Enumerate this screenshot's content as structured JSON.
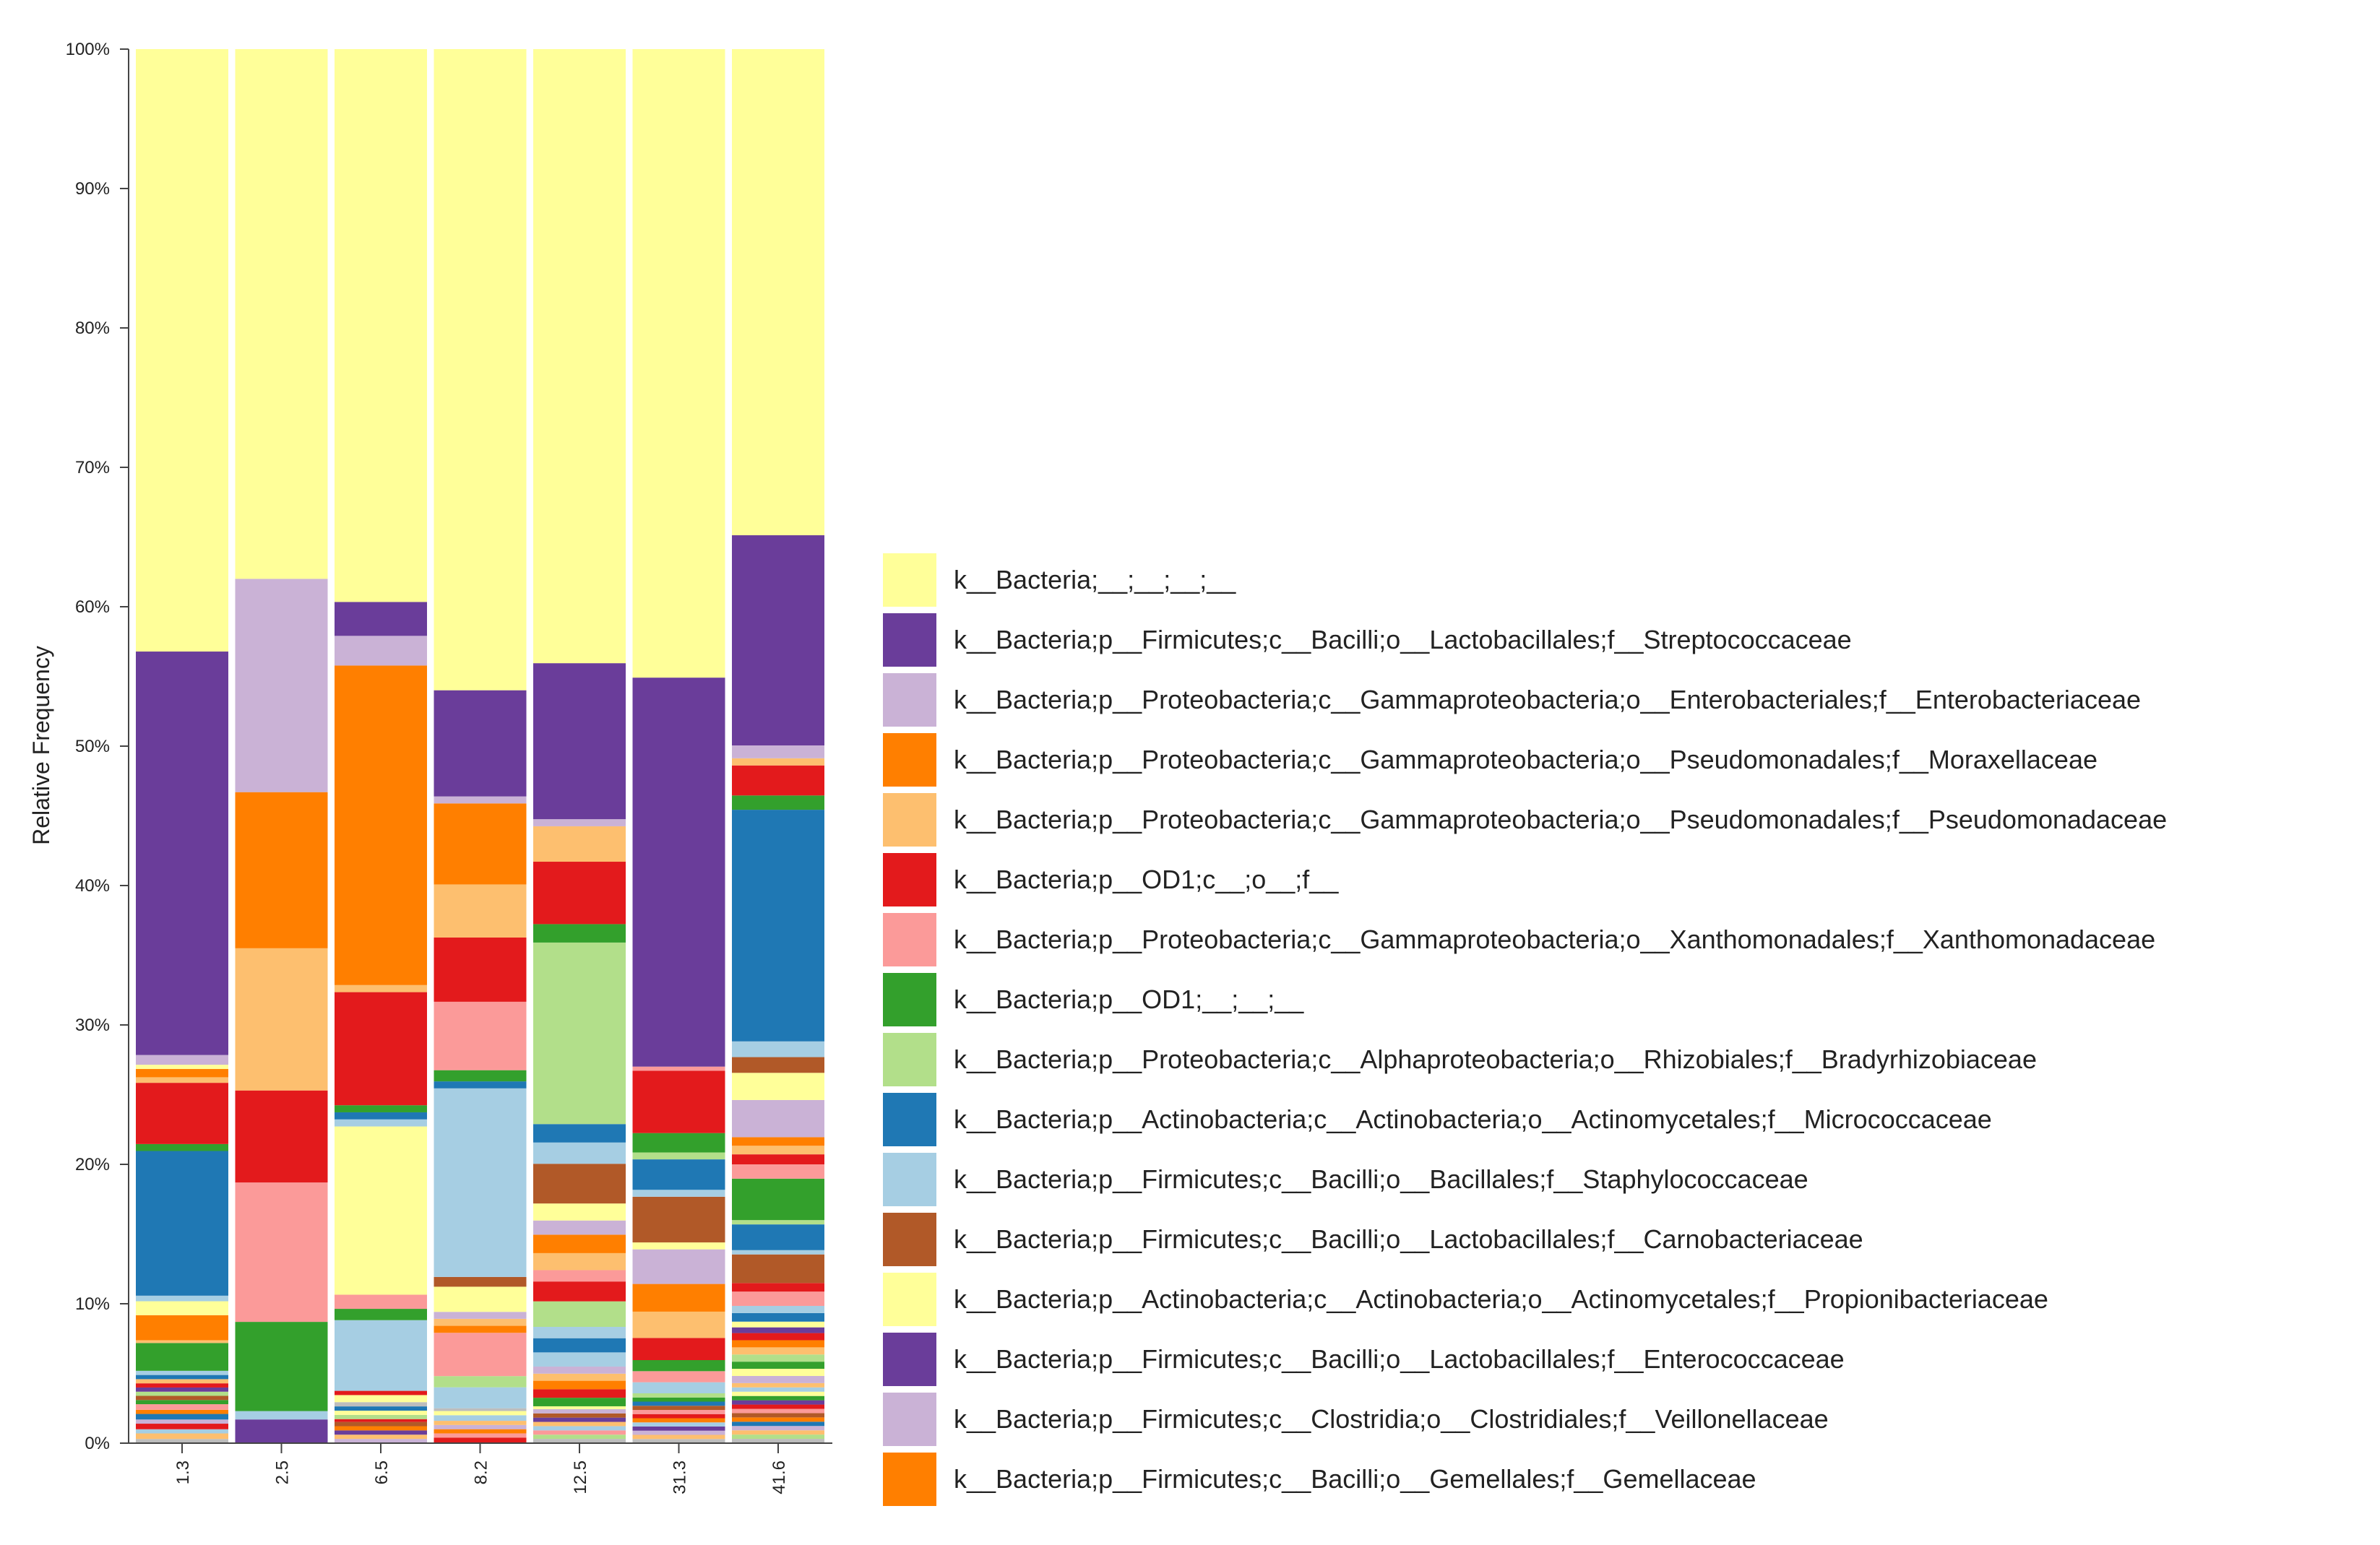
{
  "chart_data": {
    "type": "bar",
    "stacked": true,
    "title": "",
    "xlabel": "",
    "ylabel": "Relative Frequency",
    "ylim": [
      0,
      100
    ],
    "y_ticks": [
      "0%",
      "10%",
      "20%",
      "30%",
      "40%",
      "50%",
      "60%",
      "70%",
      "80%",
      "90%",
      "100%"
    ],
    "categories": [
      "1.3",
      "2.5",
      "6.5",
      "8.2",
      "12.5",
      "31.3",
      "41.6"
    ],
    "legend_position": "right",
    "palette": {
      "yellow_light": "#ffff99",
      "purple": "#6a3d9a",
      "lilac": "#cab2d6",
      "orange": "#ff7f00",
      "peach": "#fdbf6f",
      "red": "#e31a1c",
      "pink": "#fb9a99",
      "green": "#33a02c",
      "lightgreen": "#b2df8a",
      "blue": "#1f78b4",
      "lightblue": "#a6cee3",
      "brown": "#b15928",
      "gray": "#bdbdbd"
    },
    "legend": [
      {
        "label": "k__Bacteria;__;__;__;__",
        "color": "#ffff99"
      },
      {
        "label": "k__Bacteria;p__Firmicutes;c__Bacilli;o__Lactobacillales;f__Streptococcaceae",
        "color": "#6a3d9a"
      },
      {
        "label": "k__Bacteria;p__Proteobacteria;c__Gammaproteobacteria;o__Enterobacteriales;f__Enterobacteriaceae",
        "color": "#cab2d6"
      },
      {
        "label": "k__Bacteria;p__Proteobacteria;c__Gammaproteobacteria;o__Pseudomonadales;f__Moraxellaceae",
        "color": "#ff7f00"
      },
      {
        "label": "k__Bacteria;p__Proteobacteria;c__Gammaproteobacteria;o__Pseudomonadales;f__Pseudomonadaceae",
        "color": "#fdbf6f"
      },
      {
        "label": "k__Bacteria;p__OD1;c__;o__;f__",
        "color": "#e31a1c"
      },
      {
        "label": "k__Bacteria;p__Proteobacteria;c__Gammaproteobacteria;o__Xanthomonadales;f__Xanthomonadaceae",
        "color": "#fb9a99"
      },
      {
        "label": "k__Bacteria;p__OD1;__;__;__",
        "color": "#33a02c"
      },
      {
        "label": "k__Bacteria;p__Proteobacteria;c__Alphaproteobacteria;o__Rhizobiales;f__Bradyrhizobiaceae",
        "color": "#b2df8a"
      },
      {
        "label": "k__Bacteria;p__Actinobacteria;c__Actinobacteria;o__Actinomycetales;f__Micrococcaceae",
        "color": "#1f78b4"
      },
      {
        "label": "k__Bacteria;p__Firmicutes;c__Bacilli;o__Bacillales;f__Staphylococcaceae",
        "color": "#a6cee3"
      },
      {
        "label": "k__Bacteria;p__Firmicutes;c__Bacilli;o__Lactobacillales;f__Carnobacteriaceae",
        "color": "#b15928"
      },
      {
        "label": "k__Bacteria;p__Actinobacteria;c__Actinobacteria;o__Actinomycetales;f__Propionibacteriaceae",
        "color": "#ffff99"
      },
      {
        "label": "k__Bacteria;p__Firmicutes;c__Bacilli;o__Lactobacillales;f__Enterococcaceae",
        "color": "#6a3d9a"
      },
      {
        "label": "k__Bacteria;p__Firmicutes;c__Clostridia;o__Clostridiales;f__Veillonellaceae",
        "color": "#cab2d6"
      },
      {
        "label": "k__Bacteria;p__Firmicutes;c__Bacilli;o__Gemellales;f__Gemellaceae",
        "color": "#ff7f00"
      }
    ],
    "bars": [
      {
        "category": "1.3",
        "segments": [
          {
            "c": "gray",
            "v": 0.3
          },
          {
            "c": "peach",
            "v": 0.4
          },
          {
            "c": "lightblue",
            "v": 0.3
          },
          {
            "c": "red",
            "v": 0.4
          },
          {
            "c": "lilac",
            "v": 0.3
          },
          {
            "c": "blue",
            "v": 0.4
          },
          {
            "c": "orange",
            "v": 0.3
          },
          {
            "c": "pink",
            "v": 0.4
          },
          {
            "c": "green",
            "v": 0.3
          },
          {
            "c": "brown",
            "v": 0.3
          },
          {
            "c": "lightgreen",
            "v": 0.3
          },
          {
            "c": "purple",
            "v": 0.3
          },
          {
            "c": "red",
            "v": 0.3
          },
          {
            "c": "peach",
            "v": 0.3
          },
          {
            "c": "blue",
            "v": 0.3
          },
          {
            "c": "lightblue",
            "v": 0.3
          },
          {
            "c": "green",
            "v": 2.0
          },
          {
            "c": "peach",
            "v": 0.2
          },
          {
            "c": "orange",
            "v": 1.8
          },
          {
            "c": "yellow_light",
            "v": 1.0
          },
          {
            "c": "lightblue",
            "v": 0.4
          },
          {
            "c": "blue",
            "v": 10.4
          },
          {
            "c": "green",
            "v": 0.5
          },
          {
            "c": "red",
            "v": 4.4
          },
          {
            "c": "peach",
            "v": 0.4
          },
          {
            "c": "orange",
            "v": 0.6
          },
          {
            "c": "yellow_light",
            "v": 0.3
          },
          {
            "c": "lilac",
            "v": 0.7
          },
          {
            "c": "purple",
            "v": 29.0
          },
          {
            "c": "yellow_light",
            "v": 43.3
          }
        ]
      },
      {
        "category": "2.5",
        "segments": [
          {
            "c": "purple",
            "v": 1.7
          },
          {
            "c": "lightblue",
            "v": 0.6
          },
          {
            "c": "green",
            "v": 6.4
          },
          {
            "c": "pink",
            "v": 10.0
          },
          {
            "c": "red",
            "v": 6.6
          },
          {
            "c": "peach",
            "v": 10.2
          },
          {
            "c": "orange",
            "v": 11.2
          },
          {
            "c": "lilac",
            "v": 15.3
          },
          {
            "c": "yellow_light",
            "v": 38.0
          }
        ]
      },
      {
        "category": "6.5",
        "segments": [
          {
            "c": "lilac",
            "v": 0.3
          },
          {
            "c": "peach",
            "v": 0.3
          },
          {
            "c": "purple",
            "v": 0.3
          },
          {
            "c": "orange",
            "v": 0.3
          },
          {
            "c": "brown",
            "v": 0.3
          },
          {
            "c": "red",
            "v": 0.2
          },
          {
            "c": "lightgreen",
            "v": 0.3
          },
          {
            "c": "yellow_light",
            "v": 0.3
          },
          {
            "c": "blue",
            "v": 0.3
          },
          {
            "c": "gray",
            "v": 0.3
          },
          {
            "c": "yellow_light",
            "v": 0.5
          },
          {
            "c": "red",
            "v": 0.3
          },
          {
            "c": "lightblue",
            "v": 5.0
          },
          {
            "c": "green",
            "v": 0.8
          },
          {
            "c": "pink",
            "v": 1.0
          },
          {
            "c": "yellow_light",
            "v": 11.9
          },
          {
            "c": "lightblue",
            "v": 0.5
          },
          {
            "c": "blue",
            "v": 0.5
          },
          {
            "c": "green",
            "v": 0.5
          },
          {
            "c": "red",
            "v": 8.0
          },
          {
            "c": "peach",
            "v": 0.5
          },
          {
            "c": "orange",
            "v": 22.6
          },
          {
            "c": "lilac",
            "v": 2.1
          },
          {
            "c": "purple",
            "v": 2.4
          },
          {
            "c": "yellow_light",
            "v": 39.1
          }
        ]
      },
      {
        "category": "8.2",
        "segments": [
          {
            "c": "red",
            "v": 0.4
          },
          {
            "c": "pink",
            "v": 0.3
          },
          {
            "c": "orange",
            "v": 0.3
          },
          {
            "c": "lilac",
            "v": 0.3
          },
          {
            "c": "peach",
            "v": 0.3
          },
          {
            "c": "lightblue",
            "v": 0.4
          },
          {
            "c": "yellow_light",
            "v": 0.3
          },
          {
            "c": "gray",
            "v": 0.2
          },
          {
            "c": "lightblue",
            "v": 1.5
          },
          {
            "c": "lightgreen",
            "v": 0.8
          },
          {
            "c": "pink",
            "v": 3.1
          },
          {
            "c": "orange",
            "v": 0.5
          },
          {
            "c": "peach",
            "v": 0.5
          },
          {
            "c": "lilac",
            "v": 0.5
          },
          {
            "c": "yellow_light",
            "v": 1.8
          },
          {
            "c": "brown",
            "v": 0.7
          },
          {
            "c": "lightblue",
            "v": 13.5
          },
          {
            "c": "blue",
            "v": 0.5
          },
          {
            "c": "green",
            "v": 0.8
          },
          {
            "c": "pink",
            "v": 4.9
          },
          {
            "c": "red",
            "v": 4.6
          },
          {
            "c": "peach",
            "v": 3.8
          },
          {
            "c": "orange",
            "v": 5.8
          },
          {
            "c": "lilac",
            "v": 0.5
          },
          {
            "c": "purple",
            "v": 7.6
          },
          {
            "c": "yellow_light",
            "v": 45.9
          }
        ]
      },
      {
        "category": "12.5",
        "segments": [
          {
            "c": "gray",
            "v": 0.3
          },
          {
            "c": "lightgreen",
            "v": 0.3
          },
          {
            "c": "pink",
            "v": 0.3
          },
          {
            "c": "lightblue",
            "v": 0.3
          },
          {
            "c": "peach",
            "v": 0.3
          },
          {
            "c": "purple",
            "v": 0.3
          },
          {
            "c": "brown",
            "v": 0.3
          },
          {
            "c": "lilac",
            "v": 0.3
          },
          {
            "c": "yellow_light",
            "v": 0.2
          },
          {
            "c": "green",
            "v": 0.6
          },
          {
            "c": "red",
            "v": 0.6
          },
          {
            "c": "orange",
            "v": 0.6
          },
          {
            "c": "peach",
            "v": 0.5
          },
          {
            "c": "lilac",
            "v": 0.5
          },
          {
            "c": "lightblue",
            "v": 1.0
          },
          {
            "c": "blue",
            "v": 1.0
          },
          {
            "c": "lightblue",
            "v": 0.8
          },
          {
            "c": "lightgreen",
            "v": 1.8
          },
          {
            "c": "red",
            "v": 1.4
          },
          {
            "c": "pink",
            "v": 0.8
          },
          {
            "c": "peach",
            "v": 1.2
          },
          {
            "c": "orange",
            "v": 1.3
          },
          {
            "c": "lilac",
            "v": 1.0
          },
          {
            "c": "yellow_light",
            "v": 1.2
          },
          {
            "c": "brown",
            "v": 2.8
          },
          {
            "c": "lightblue",
            "v": 1.5
          },
          {
            "c": "blue",
            "v": 1.3
          },
          {
            "c": "lightgreen",
            "v": 12.8
          },
          {
            "c": "green",
            "v": 1.3
          },
          {
            "c": "red",
            "v": 4.4
          },
          {
            "c": "peach",
            "v": 2.5
          },
          {
            "c": "lilac",
            "v": 0.5
          },
          {
            "c": "purple",
            "v": 11.0
          },
          {
            "c": "yellow_light",
            "v": 43.3
          }
        ]
      },
      {
        "category": "31.3",
        "segments": [
          {
            "c": "gray",
            "v": 0.3
          },
          {
            "c": "peach",
            "v": 0.3
          },
          {
            "c": "lilac",
            "v": 0.3
          },
          {
            "c": "purple",
            "v": 0.3
          },
          {
            "c": "lightblue",
            "v": 0.3
          },
          {
            "c": "orange",
            "v": 0.3
          },
          {
            "c": "red",
            "v": 0.3
          },
          {
            "c": "pink",
            "v": 0.3
          },
          {
            "c": "brown",
            "v": 0.3
          },
          {
            "c": "blue",
            "v": 0.3
          },
          {
            "c": "green",
            "v": 0.3
          },
          {
            "c": "lightgreen",
            "v": 0.3
          },
          {
            "c": "lightblue",
            "v": 0.8
          },
          {
            "c": "pink",
            "v": 0.8
          },
          {
            "c": "green",
            "v": 0.8
          },
          {
            "c": "red",
            "v": 1.6
          },
          {
            "c": "peach",
            "v": 1.9
          },
          {
            "c": "orange",
            "v": 2.0
          },
          {
            "c": "lilac",
            "v": 2.5
          },
          {
            "c": "yellow_light",
            "v": 0.5
          },
          {
            "c": "brown",
            "v": 3.3
          },
          {
            "c": "lightblue",
            "v": 0.5
          },
          {
            "c": "blue",
            "v": 2.2
          },
          {
            "c": "lightgreen",
            "v": 0.5
          },
          {
            "c": "green",
            "v": 1.4
          },
          {
            "c": "red",
            "v": 4.5
          },
          {
            "c": "pink",
            "v": 0.3
          },
          {
            "c": "purple",
            "v": 28.1
          },
          {
            "c": "yellow_light",
            "v": 45.4
          }
        ]
      },
      {
        "category": "41.6",
        "segments": [
          {
            "c": "gray",
            "v": 0.3
          },
          {
            "c": "lightgreen",
            "v": 0.3
          },
          {
            "c": "peach",
            "v": 0.3
          },
          {
            "c": "lilac",
            "v": 0.3
          },
          {
            "c": "blue",
            "v": 0.3
          },
          {
            "c": "orange",
            "v": 0.3
          },
          {
            "c": "brown",
            "v": 0.3
          },
          {
            "c": "pink",
            "v": 0.3
          },
          {
            "c": "red",
            "v": 0.3
          },
          {
            "c": "purple",
            "v": 0.3
          },
          {
            "c": "green",
            "v": 0.3
          },
          {
            "c": "yellow_light",
            "v": 0.3
          },
          {
            "c": "lightblue",
            "v": 0.3
          },
          {
            "c": "peach",
            "v": 0.3
          },
          {
            "c": "lilac",
            "v": 0.5
          },
          {
            "c": "yellow_light",
            "v": 0.5
          },
          {
            "c": "green",
            "v": 0.5
          },
          {
            "c": "lightgreen",
            "v": 0.5
          },
          {
            "c": "peach",
            "v": 0.5
          },
          {
            "c": "orange",
            "v": 0.5
          },
          {
            "c": "red",
            "v": 0.5
          },
          {
            "c": "purple",
            "v": 0.4
          },
          {
            "c": "yellow_light",
            "v": 0.4
          },
          {
            "c": "blue",
            "v": 0.6
          },
          {
            "c": "lightblue",
            "v": 0.5
          },
          {
            "c": "pink",
            "v": 1.0
          },
          {
            "c": "red",
            "v": 0.6
          },
          {
            "c": "brown",
            "v": 2.0
          },
          {
            "c": "lightblue",
            "v": 0.3
          },
          {
            "c": "blue",
            "v": 1.8
          },
          {
            "c": "lightgreen",
            "v": 0.3
          },
          {
            "c": "green",
            "v": 2.9
          },
          {
            "c": "pink",
            "v": 1.0
          },
          {
            "c": "red",
            "v": 0.7
          },
          {
            "c": "peach",
            "v": 0.6
          },
          {
            "c": "orange",
            "v": 0.6
          },
          {
            "c": "lilac",
            "v": 2.6
          },
          {
            "c": "yellow_light",
            "v": 1.9
          },
          {
            "c": "brown",
            "v": 1.1
          },
          {
            "c": "lightblue",
            "v": 1.1
          },
          {
            "c": "blue",
            "v": 16.2
          },
          {
            "c": "green",
            "v": 1.0
          },
          {
            "c": "red",
            "v": 2.1
          },
          {
            "c": "peach",
            "v": 0.5
          },
          {
            "c": "lilac",
            "v": 0.9
          },
          {
            "c": "purple",
            "v": 14.7
          },
          {
            "c": "yellow_light",
            "v": 34.0
          }
        ]
      }
    ]
  }
}
